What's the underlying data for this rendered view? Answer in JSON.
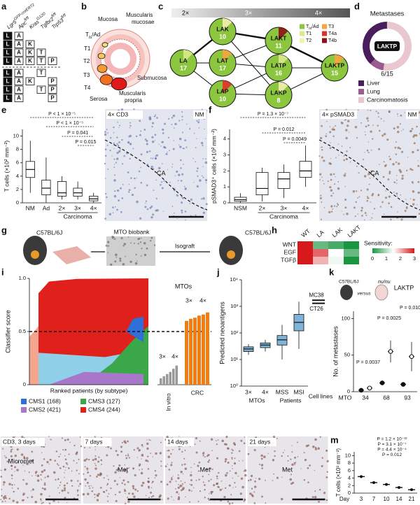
{
  "a": {
    "letter": "a",
    "genes": [
      {
        "base": "Lgr5",
        "sup": "GFP-creERT2"
      },
      {
        "base": "Apc",
        "sup": "fl/fl"
      },
      {
        "base": "Kras",
        "sup": "G12D"
      },
      {
        "base": "Tgfbr2",
        "sup": "fl/fl"
      },
      {
        "base": "Trp53",
        "sup": "fl/fl"
      }
    ],
    "rows": [
      [
        "L",
        "A",
        null,
        null,
        null
      ],
      [
        "L",
        "A",
        "K",
        null,
        null
      ],
      [
        "L",
        "A",
        "K",
        "T",
        null
      ],
      [
        "L",
        "A",
        "K",
        "T",
        "P"
      ],
      [
        "L",
        "A",
        null,
        "T",
        null
      ],
      [
        "L",
        "A",
        "K",
        null,
        "P"
      ],
      [
        "L",
        "A",
        null,
        "T",
        "P"
      ],
      [
        "L",
        "A",
        null,
        null,
        "P"
      ]
    ]
  },
  "b": {
    "letter": "b",
    "mucosa": "Mucosa",
    "muscularis_mucosae": [
      "Muscularis",
      "mucosae"
    ],
    "tis": {
      "base": "T",
      "sub": "is",
      "rest": "/Ad"
    },
    "t1": "T1",
    "t2": "T2",
    "t3": "T3",
    "t4": "T4",
    "serosa": "Serosa",
    "submucosa": "Submucosa",
    "muscularis_propria": [
      "Muscularis",
      "propria"
    ]
  },
  "c": {
    "letter": "c",
    "stages": [
      "2×",
      "3×",
      "4×"
    ],
    "nodes": [
      {
        "label": "LA",
        "n": "17"
      },
      {
        "label": "LAK",
        "n": "10"
      },
      {
        "label": "LAT",
        "n": "17"
      },
      {
        "label": "LAP",
        "n": "10"
      },
      {
        "label": "LAKT",
        "n": "11"
      },
      {
        "label": "LATP",
        "n": "16"
      },
      {
        "label": "LAKP",
        "n": "8"
      },
      {
        "label": "LAKTP",
        "n": "15"
      }
    ],
    "legend": [
      {
        "name": {
          "base": "T",
          "sub": "is",
          "rest": "/Ad"
        },
        "color": "#8cc63f"
      },
      {
        "name": "T1",
        "color": "#d9ea8c"
      },
      {
        "name": "T2",
        "color": "#f3f0b0"
      },
      {
        "name": "T3",
        "color": "#f7a540"
      },
      {
        "name": "T4a",
        "color": "#e0302a"
      },
      {
        "name": "T4b",
        "color": "#8e0f14"
      }
    ]
  },
  "d": {
    "letter": "d",
    "title": "Metastases",
    "center": "LAKTP",
    "fraction": "6/15",
    "legend": [
      {
        "name": "Liver",
        "color": "#4a1e5c"
      },
      {
        "name": "Lung",
        "color": "#9a5b90"
      },
      {
        "name": "Carcinomatosis",
        "color": "#e8c7cf"
      }
    ]
  },
  "e": {
    "letter": "e",
    "ylabel": "T cells (×10² mm⁻²)",
    "ylim": [
      0,
      11
    ],
    "yticks": [
      0,
      2,
      4,
      6,
      8,
      10
    ],
    "categories": [
      "NM",
      "Ad",
      "2×",
      "3×",
      "4×"
    ],
    "group_label": "Carcinoma",
    "boxes": [
      [
        1.5,
        3.8,
        5,
        6.2,
        9.3
      ],
      [
        0,
        1.2,
        2.2,
        3.4,
        6.8
      ],
      [
        0.5,
        1,
        1.5,
        3.2,
        4
      ],
      [
        0.5,
        1,
        1.5,
        2.2,
        3.2
      ],
      [
        0,
        0.3,
        0.6,
        1,
        1.5
      ]
    ],
    "pvalues": [
      "P < 1 × 10⁻⁵",
      "P < 1 × 10⁻⁵",
      "P = 0.041",
      "P = 0.015"
    ],
    "image_labels": [
      "4× CD3",
      "NM",
      "CA"
    ]
  },
  "f": {
    "letter": "f",
    "ylabel": "pSMAD3⁺ cells (×10² mm⁻²)",
    "ylim": [
      0,
      4.6
    ],
    "yticks": [
      0,
      1,
      2,
      3,
      4
    ],
    "categories": [
      "NSM",
      "2×",
      "3×",
      "4×"
    ],
    "group_label": "Carcinoma",
    "boxes": [
      [
        0,
        0.1,
        0.2,
        0.35,
        0.6
      ],
      [
        0.1,
        0.5,
        0.9,
        1.9,
        2.2
      ],
      [
        0.3,
        0.9,
        1.5,
        1.9,
        2.4
      ],
      [
        1,
        1.6,
        2,
        2.6,
        3.6
      ]
    ],
    "pvalues": [
      "P = 1.3 × 10⁻⁷",
      "P = 0.012",
      "P = 0.0049"
    ],
    "image_labels": [
      "4× pSMAD3",
      "NM",
      "CA"
    ]
  },
  "g": {
    "letter": "g",
    "donor": "C57BL/6J",
    "biobank": "MTO biobank",
    "arrow": "Isograft",
    "recipient": "C57BL/6J"
  },
  "h": {
    "letter": "h",
    "rows": [
      "WNT",
      "EGF",
      "TGFβ"
    ],
    "cols": [
      "WT",
      "LA",
      "LAK",
      "LAKT"
    ],
    "values": [
      [
        3,
        0.5,
        0.3,
        0
      ],
      [
        3,
        2.5,
        1.5,
        0.5
      ],
      [
        3,
        2,
        1.4,
        0
      ]
    ],
    "legend_title": "Sensitivity:",
    "range": [
      0,
      3
    ],
    "legend_ticks": [
      0,
      1,
      2,
      3
    ]
  },
  "i": {
    "letter": "i",
    "ylabel": "Classifier score",
    "ylim": [
      0,
      1
    ],
    "yticks": [
      0,
      0.5,
      {
        "value": 1,
        "label": "1.0"
      }
    ],
    "xlabel": "Ranked patients (by subtype)",
    "legend": [
      {
        "name": "CMS1 (168)",
        "color": "#2f6fd8"
      },
      {
        "name": "CMS3 (127)",
        "color": "#3aa84a"
      },
      {
        "name": "CMS2 (421)",
        "color": "#a877c9"
      },
      {
        "name": "CMS4 (244)",
        "color": "#e0201b"
      }
    ],
    "mto_title": "MTOs",
    "upper_groups": [
      "3×",
      "4×"
    ],
    "lower_groups": [
      "3×",
      "4×"
    ],
    "in_vitro_label": "In vitro",
    "crc_label": "CRC",
    "in_vitro": [
      0.06,
      0.08,
      0.1,
      0.12,
      0.15,
      0.18
    ],
    "crc": [
      0.6,
      0.62,
      0.63,
      0.65,
      0.66,
      0.68
    ]
  },
  "j": {
    "letter": "j",
    "ylabel": "Predicted neoantigens",
    "ylim": [
      1,
      10000
    ],
    "yticks": [
      {
        "value": 1,
        "label": "10⁰"
      },
      {
        "value": 10,
        "label": "10¹"
      },
      {
        "value": 100,
        "label": "10²"
      },
      {
        "value": 1000,
        "label": "10³"
      },
      {
        "value": 10000,
        "label": "10⁴"
      }
    ],
    "categories": [
      "3×",
      "4×",
      "MSS",
      "MSI"
    ],
    "boxes": [
      [
        15,
        20,
        25,
        30,
        38
      ],
      [
        20,
        28,
        35,
        42,
        55
      ],
      [
        10,
        35,
        55,
        80,
        200
      ],
      [
        25,
        120,
        250,
        500,
        1500
      ]
    ],
    "groups": [
      "MTOs",
      "Patients",
      "Cell lines"
    ],
    "cell_lines": [
      {
        "name": "MC38",
        "value": 1700
      },
      {
        "name": "CT26",
        "value": 1300
      }
    ]
  },
  "k": {
    "letter": "k",
    "host1": "C57BL/6J",
    "versus": "versus",
    "host2": "nu/nu",
    "model": "LAKTP",
    "ylabel": "No. of metastases",
    "ylim": [
      0,
      110
    ],
    "yticks": [
      0,
      50,
      100
    ],
    "xlabel": "MTO",
    "categories": [
      "34",
      "68",
      "93"
    ],
    "means": [
      [
        2,
        5
      ],
      [
        12,
        55
      ],
      [
        10,
        48
      ]
    ],
    "sem": [
      [
        1,
        2
      ],
      [
        3,
        15
      ],
      [
        3,
        20
      ]
    ],
    "pvalues": [
      "P = 0.0037",
      "P = 0.0025",
      "P = 0.010"
    ]
  },
  "l": {
    "letter": "l",
    "panels": [
      {
        "label": "CD3, 3 days",
        "inset": "Micromet"
      },
      {
        "label": "7 days",
        "inset": "Met"
      },
      {
        "label": "14 days",
        "inset": "Met"
      },
      {
        "label": "21 days",
        "inset": "Met"
      }
    ]
  },
  "m": {
    "letter": "m",
    "ylabel": "T cells (×10³ mm⁻²)",
    "ylim": [
      0,
      11
    ],
    "yticks": [
      0,
      2,
      4,
      6,
      8,
      10
    ],
    "xlabel": "Day",
    "categories": [
      "3",
      "7",
      "10",
      "14",
      "21"
    ],
    "means": [
      4.4,
      2.8,
      2.3,
      1.5,
      0.9
    ],
    "pvalues": [
      "P = 1.2 × 10⁻¹²",
      "P = 3.1 × 10⁻⁷",
      "P = 4.4 × 10⁻⁴",
      "P = 0.012"
    ]
  }
}
